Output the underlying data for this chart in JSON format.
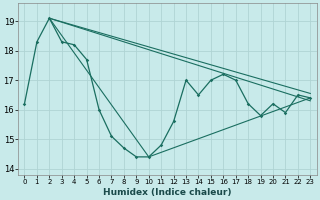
{
  "xlabel": "Humidex (Indice chaleur)",
  "bg_color": "#c8eaea",
  "grid_color": "#afd4d4",
  "line_color": "#1a6e60",
  "xlim": [
    -0.5,
    23.5
  ],
  "ylim": [
    13.8,
    19.6
  ],
  "xticks": [
    0,
    1,
    2,
    3,
    4,
    5,
    6,
    7,
    8,
    9,
    10,
    11,
    12,
    13,
    14,
    15,
    16,
    17,
    18,
    19,
    20,
    21,
    22,
    23
  ],
  "yticks": [
    14,
    15,
    16,
    17,
    18,
    19
  ],
  "series1_x": [
    0,
    1,
    2,
    3,
    4,
    5,
    6,
    7,
    8,
    9,
    10,
    11,
    12,
    13,
    14,
    15,
    16,
    17,
    18,
    19,
    20,
    21,
    22,
    23
  ],
  "series1_y": [
    16.2,
    18.3,
    19.1,
    18.3,
    18.2,
    17.7,
    16.0,
    15.1,
    14.7,
    14.4,
    14.4,
    14.8,
    15.6,
    17.0,
    16.5,
    17.0,
    17.2,
    17.0,
    16.2,
    15.8,
    16.2,
    15.9,
    16.5,
    16.4
  ],
  "trend1_x": [
    2,
    23
  ],
  "trend1_y": [
    19.1,
    16.3
  ],
  "trend2_x": [
    2,
    23
  ],
  "trend2_y": [
    19.1,
    16.55
  ],
  "trend3_x": [
    2,
    10,
    23
  ],
  "trend3_y": [
    19.1,
    14.4,
    16.4
  ]
}
